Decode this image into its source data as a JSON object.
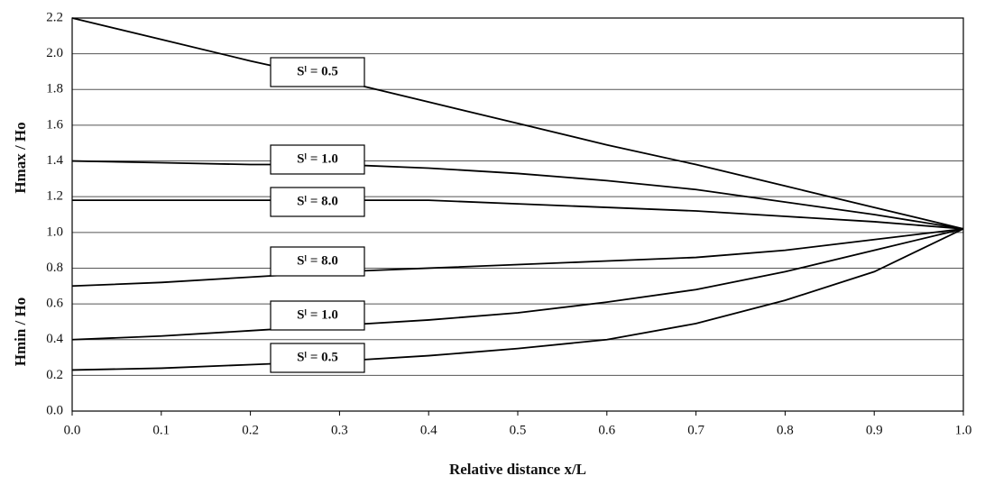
{
  "chart_data": {
    "type": "line",
    "x_label": "Relative distance  x/L",
    "y_labels": [
      "Hmax / Ho",
      "Hmin / Ho"
    ],
    "x": [
      0,
      0.1,
      0.2,
      0.3,
      0.4,
      0.5,
      0.6,
      0.7,
      0.8,
      0.9,
      1.0
    ],
    "series": [
      {
        "name": "Sˡ = 0.5",
        "color": "#000000",
        "values": [
          2.2,
          2.08,
          1.96,
          1.85,
          1.73,
          1.61,
          1.49,
          1.38,
          1.26,
          1.14,
          1.02
        ]
      },
      {
        "name": "Sˡ = 1.0",
        "color": "#000000",
        "values": [
          1.4,
          1.39,
          1.38,
          1.38,
          1.36,
          1.33,
          1.29,
          1.24,
          1.17,
          1.1,
          1.02
        ]
      },
      {
        "name": "Sˡ = 8.0",
        "color": "#000000",
        "values": [
          1.18,
          1.18,
          1.18,
          1.18,
          1.18,
          1.16,
          1.14,
          1.12,
          1.09,
          1.06,
          1.02
        ]
      },
      {
        "name": "Sˡ = 8.0",
        "color": "#000000",
        "values": [
          0.7,
          0.72,
          0.75,
          0.78,
          0.8,
          0.82,
          0.84,
          0.86,
          0.9,
          0.96,
          1.02
        ]
      },
      {
        "name": "Sˡ = 1.0",
        "color": "#000000",
        "values": [
          0.4,
          0.42,
          0.45,
          0.48,
          0.51,
          0.55,
          0.61,
          0.68,
          0.78,
          0.9,
          1.02
        ]
      },
      {
        "name": "Sˡ = 0.5",
        "color": "#000000",
        "values": [
          0.23,
          0.24,
          0.26,
          0.28,
          0.31,
          0.35,
          0.4,
          0.49,
          0.62,
          0.78,
          1.02
        ]
      }
    ],
    "xlim": [
      0,
      1.0
    ],
    "xticks": [
      {
        "value": 0,
        "label": "0.0"
      },
      0.1,
      0.2,
      0.3,
      0.4,
      0.5,
      0.6,
      0.7,
      0.8,
      0.9,
      {
        "value": 1,
        "label": "1.0"
      }
    ],
    "ylim": [
      0,
      2.2
    ],
    "yticks": [
      {
        "value": 0,
        "label": "0.0"
      },
      0.2,
      0.4,
      0.6,
      0.8,
      {
        "value": 1,
        "label": "1.0"
      },
      1.2,
      1.4,
      1.6,
      1.8,
      {
        "value": 2,
        "label": "2.0"
      },
      2.2
    ],
    "grid": true
  }
}
